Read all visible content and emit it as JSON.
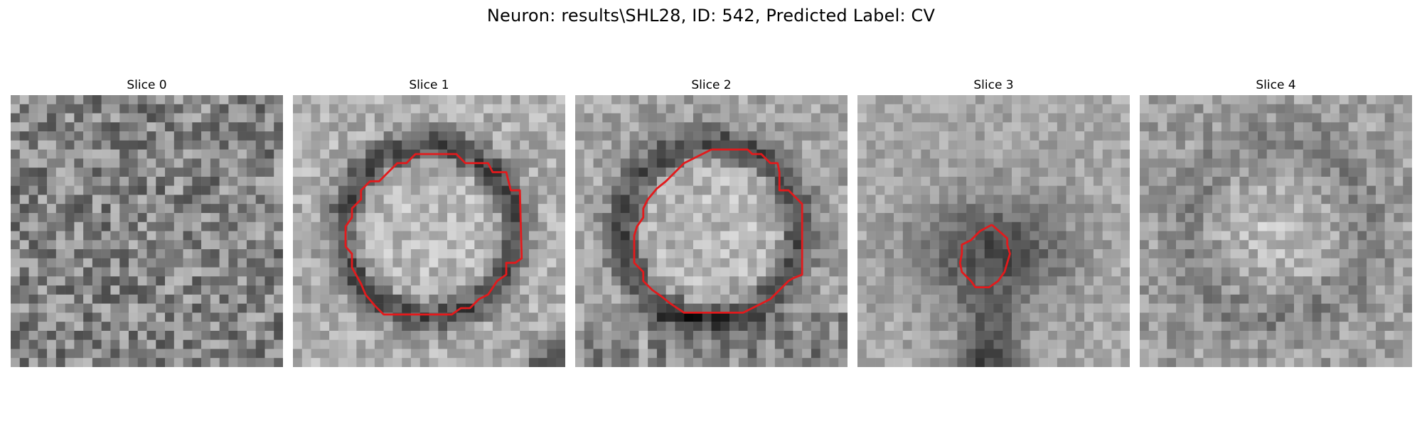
{
  "title": "Neuron: results\\SHL28, ID: 542, Predicted Label: CV",
  "slices": [
    {
      "label": "Slice 0",
      "has_contour": false
    },
    {
      "label": "Slice 1",
      "has_contour": true
    },
    {
      "label": "Slice 2",
      "has_contour": true
    },
    {
      "label": "Slice 3",
      "has_contour": true
    },
    {
      "label": "Slice 4",
      "has_contour": false
    }
  ],
  "colors": {
    "contour": "#e31a1c",
    "background": "#ffffff"
  }
}
